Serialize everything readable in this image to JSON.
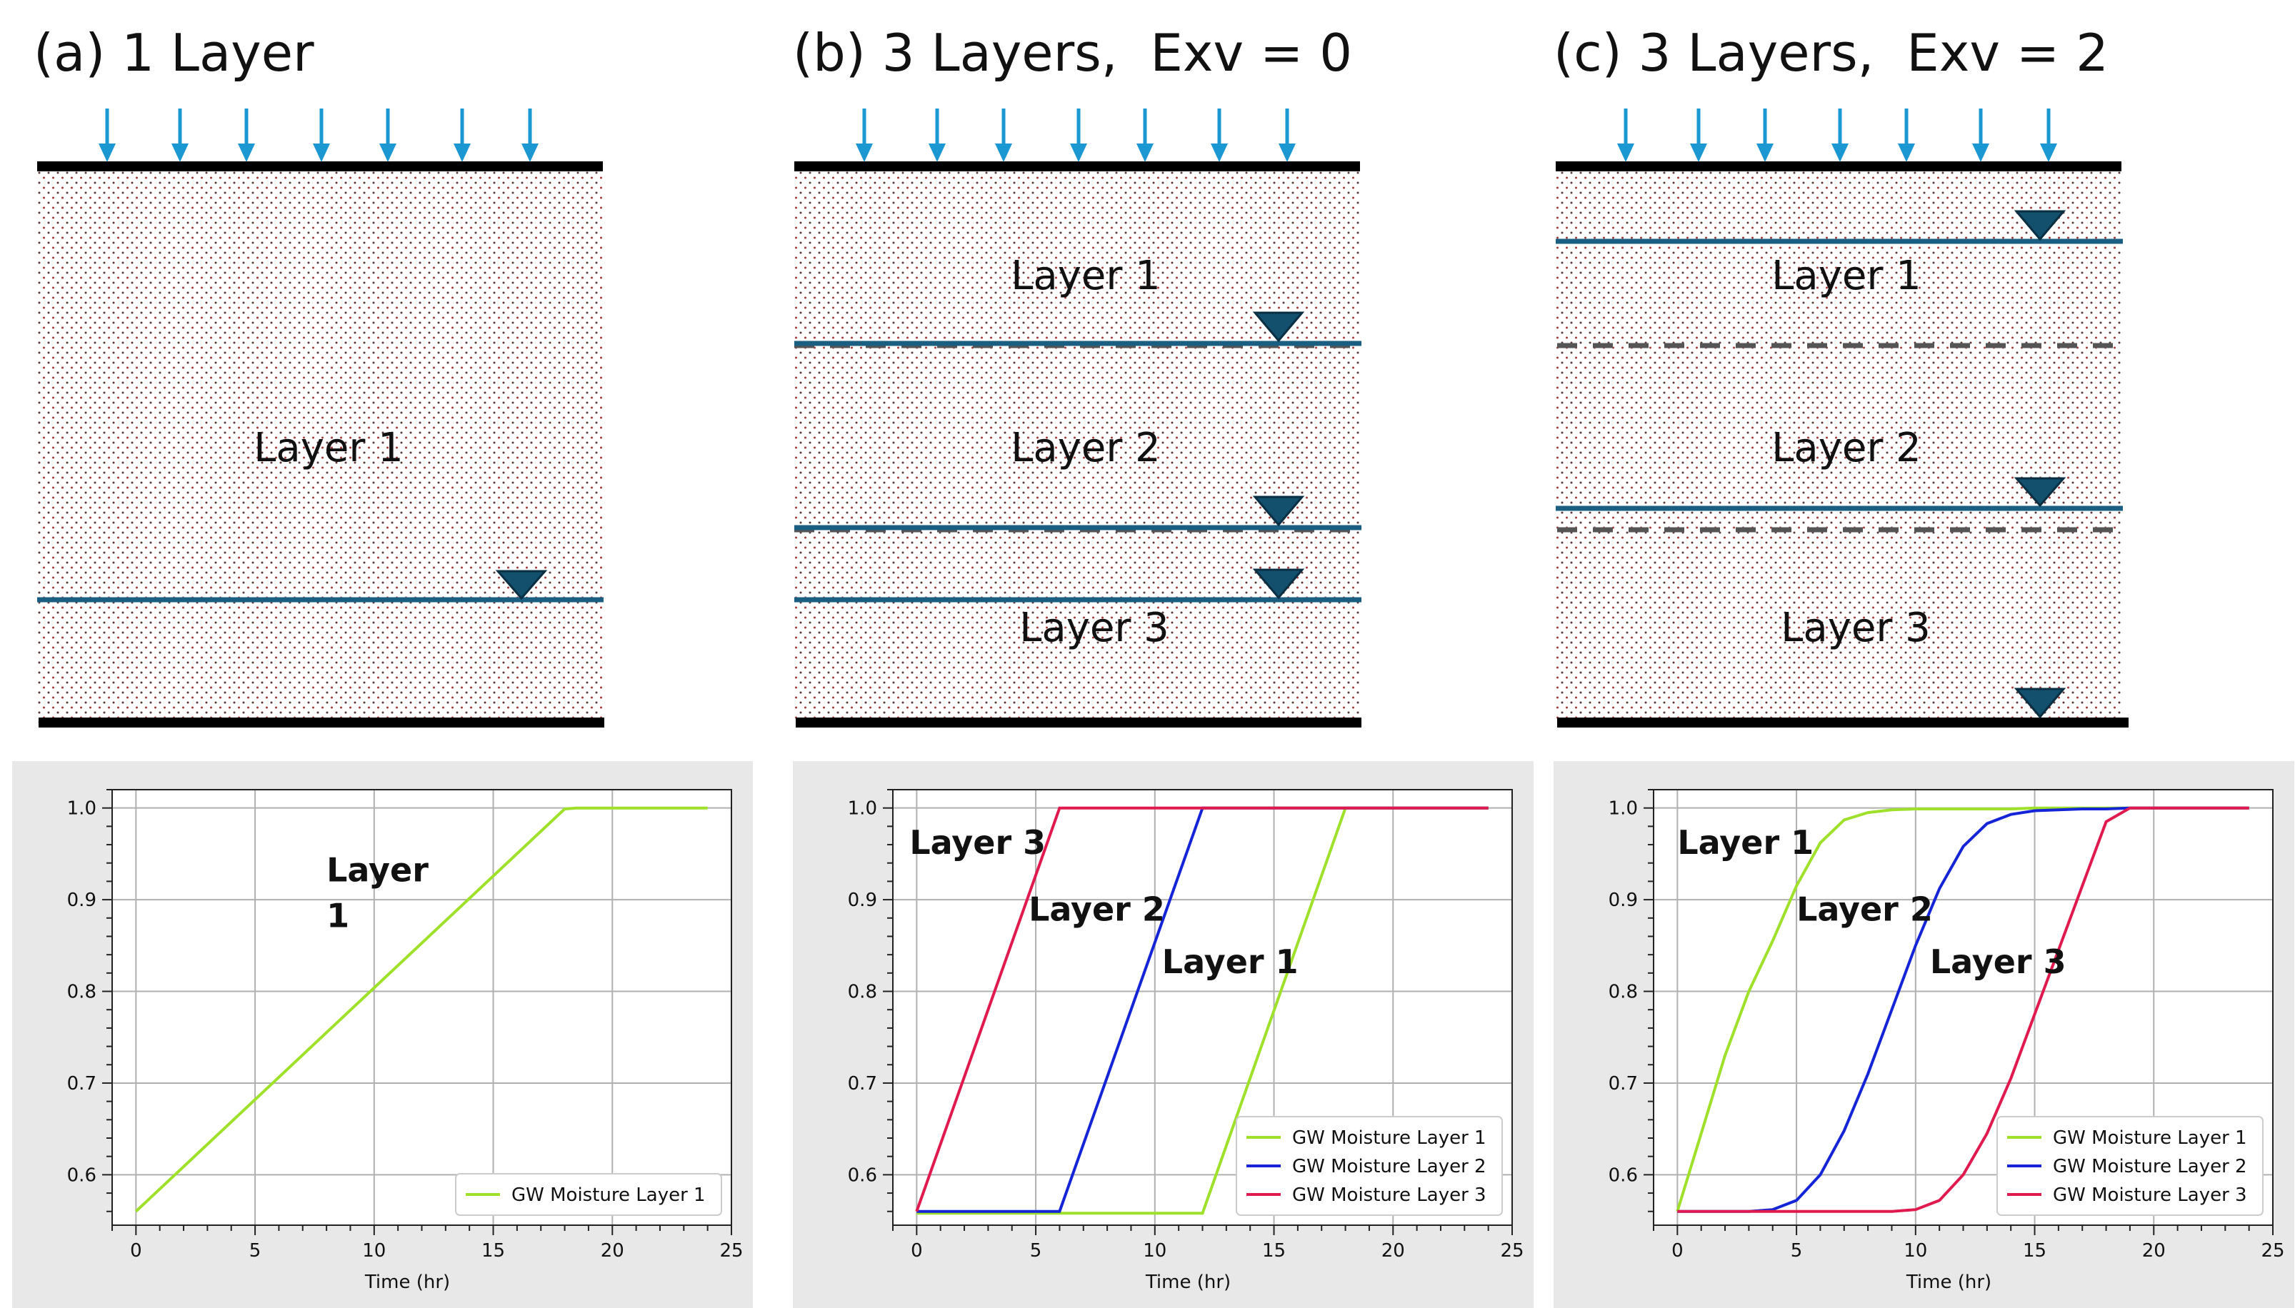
{
  "colors": {
    "rain": "#1b98d2",
    "water_table": "#1a5f82",
    "triangle": "#12506d",
    "dash": "#555555",
    "layer1_line": "#9ee02a",
    "layer2_line": "#1424d6",
    "layer3_line": "#e01a4f",
    "grid": "#b0b0b0",
    "panel_bg": "#e8e8e8"
  },
  "diagrams": [
    {
      "title": "(a) 1 Layer",
      "layers": [
        "Layer 1"
      ]
    },
    {
      "title": "(b) 3 Layers,  Exv = 0",
      "layers": [
        "Layer 1",
        "Layer 2",
        "Layer 3"
      ]
    },
    {
      "title": "(c) 3 Layers,  Exv = 2",
      "layers": [
        "Layer 1",
        "Layer 2",
        "Layer 3"
      ]
    }
  ],
  "chart_data": [
    {
      "type": "line",
      "xlabel": "Time (hr)",
      "ylabel": "",
      "xlim": [
        -1,
        25
      ],
      "ylim": [
        0.545,
        1.02
      ],
      "x_ticks": [
        0,
        5,
        10,
        15,
        20,
        25
      ],
      "y_ticks": [
        0.6,
        0.7,
        0.8,
        0.9,
        1.0
      ],
      "y_tick_labels": [
        "0.6",
        "0.7",
        "0.8",
        "0.9",
        "1.0"
      ],
      "grid": true,
      "legend": "bottom-right",
      "annotations": [
        {
          "text": "Layer",
          "x": 8,
          "y": 0.92
        },
        {
          "text": "1",
          "x": 8,
          "y": 0.87
        }
      ],
      "series": [
        {
          "name": "GW Moisture Layer 1",
          "x": [
            0,
            18,
            18.5,
            24
          ],
          "y": [
            0.56,
            0.999,
            1.0,
            1.0
          ]
        }
      ]
    },
    {
      "type": "line",
      "xlabel": "Time (hr)",
      "ylabel": "",
      "xlim": [
        -1,
        25
      ],
      "ylim": [
        0.545,
        1.02
      ],
      "x_ticks": [
        0,
        5,
        10,
        15,
        20,
        25
      ],
      "y_ticks": [
        0.6,
        0.7,
        0.8,
        0.9,
        1.0
      ],
      "y_tick_labels": [
        "0.6",
        "0.7",
        "0.8",
        "0.9",
        "1.0"
      ],
      "grid": true,
      "legend": "bottom-right",
      "annotations": [
        {
          "text": "Layer 3",
          "x": -0.3,
          "y": 0.95
        },
        {
          "text": "Layer 2",
          "x": 4.7,
          "y": 0.877
        },
        {
          "text": "Layer 1",
          "x": 10.3,
          "y": 0.82
        }
      ],
      "series": [
        {
          "name": "GW Moisture Layer 1",
          "x": [
            0,
            12,
            18,
            24
          ],
          "y": [
            0.558,
            0.558,
            1.0,
            1.0
          ]
        },
        {
          "name": "GW Moisture Layer 2",
          "x": [
            0,
            6,
            12,
            24
          ],
          "y": [
            0.56,
            0.56,
            1.0,
            1.0
          ]
        },
        {
          "name": "GW Moisture Layer 3",
          "x": [
            0,
            6,
            24
          ],
          "y": [
            0.56,
            1.0,
            1.0
          ]
        }
      ]
    },
    {
      "type": "line",
      "xlabel": "Time (hr)",
      "ylabel": "",
      "xlim": [
        -1,
        25
      ],
      "ylim": [
        0.545,
        1.02
      ],
      "x_ticks": [
        0,
        5,
        10,
        15,
        20,
        25
      ],
      "y_ticks": [
        0.6,
        0.7,
        0.8,
        0.9,
        1.0
      ],
      "y_tick_labels": [
        "0.6",
        "0.7",
        "0.8",
        "0.9",
        "1.0"
      ],
      "grid": true,
      "legend": "bottom-right",
      "annotations": [
        {
          "text": "Layer 1",
          "x": 0,
          "y": 0.95
        },
        {
          "text": "Layer 2",
          "x": 5,
          "y": 0.877
        },
        {
          "text": "Layer 3",
          "x": 10.6,
          "y": 0.82
        }
      ],
      "series": [
        {
          "name": "GW Moisture Layer 1",
          "x": [
            0,
            1,
            2,
            3,
            4,
            5,
            6,
            7,
            8,
            9,
            10,
            11,
            12,
            13,
            14,
            15,
            16,
            17,
            18,
            19,
            20,
            21,
            22,
            23,
            24
          ],
          "y": [
            0.56,
            0.645,
            0.73,
            0.8,
            0.855,
            0.915,
            0.962,
            0.987,
            0.995,
            0.998,
            0.999,
            0.999,
            0.999,
            0.999,
            0.999,
            1.0,
            1.0,
            1.0,
            1.0,
            1.0,
            1.0,
            1.0,
            1.0,
            1.0,
            1.0
          ]
        },
        {
          "name": "GW Moisture Layer 2",
          "x": [
            0,
            1,
            2,
            3,
            4,
            5,
            6,
            7,
            8,
            9,
            10,
            11,
            12,
            13,
            14,
            15,
            16,
            17,
            18,
            19,
            20,
            21,
            22,
            23,
            24
          ],
          "y": [
            0.56,
            0.56,
            0.56,
            0.56,
            0.562,
            0.572,
            0.6,
            0.648,
            0.71,
            0.78,
            0.85,
            0.912,
            0.958,
            0.983,
            0.993,
            0.997,
            0.998,
            0.999,
            0.999,
            1.0,
            1.0,
            1.0,
            1.0,
            1.0,
            1.0
          ]
        },
        {
          "name": "GW Moisture Layer 3",
          "x": [
            0,
            1,
            2,
            3,
            4,
            5,
            6,
            7,
            8,
            9,
            10,
            11,
            12,
            13,
            14,
            15,
            16,
            17,
            18,
            19,
            20,
            21,
            22,
            23,
            24
          ],
          "y": [
            0.56,
            0.56,
            0.56,
            0.56,
            0.56,
            0.56,
            0.56,
            0.56,
            0.56,
            0.56,
            0.562,
            0.572,
            0.6,
            0.645,
            0.705,
            0.775,
            0.845,
            0.915,
            0.985,
            1.0,
            1.0,
            1.0,
            1.0,
            1.0,
            1.0
          ]
        }
      ]
    }
  ]
}
